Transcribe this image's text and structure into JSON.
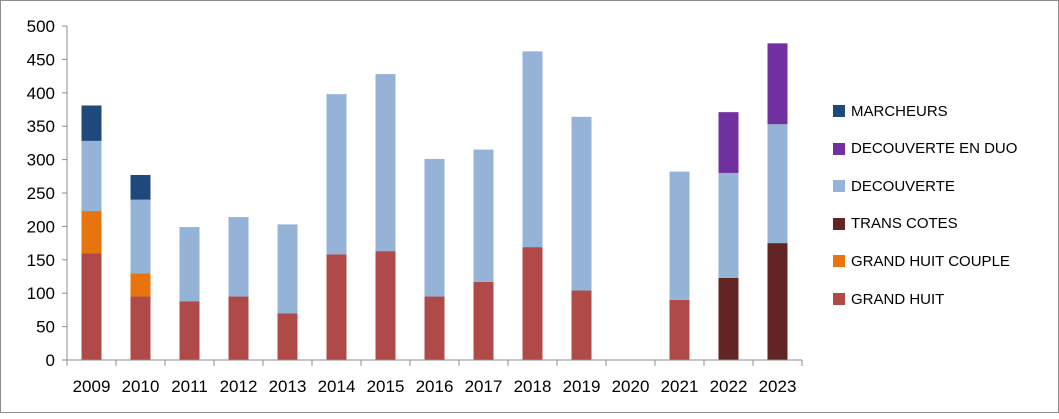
{
  "chart_data": {
    "type": "bar",
    "stacked": true,
    "categories": [
      "2009",
      "2010",
      "2011",
      "2012",
      "2013",
      "2014",
      "2015",
      "2016",
      "2017",
      "2018",
      "2019",
      "2020",
      "2021",
      "2022",
      "2023"
    ],
    "ylim": [
      0,
      500
    ],
    "yticks": [
      0,
      50,
      100,
      150,
      200,
      250,
      300,
      350,
      400,
      450,
      500
    ],
    "grid": false,
    "legend_position": "right",
    "series": [
      {
        "name": "GRAND HUIT",
        "color": "#b04a48",
        "values": [
          160,
          95,
          88,
          95,
          70,
          158,
          163,
          95,
          117,
          169,
          104,
          0,
          90,
          0,
          0
        ]
      },
      {
        "name": "GRAND HUIT COUPLE",
        "color": "#e8740f",
        "values": [
          63,
          35,
          0,
          0,
          0,
          0,
          0,
          0,
          0,
          0,
          0,
          0,
          0,
          0,
          0
        ]
      },
      {
        "name": "TRANS COTES",
        "color": "#622523",
        "values": [
          0,
          0,
          0,
          0,
          0,
          0,
          0,
          0,
          0,
          0,
          0,
          0,
          0,
          123,
          175
        ]
      },
      {
        "name": "DECOUVERTE",
        "color": "#95b3d7",
        "values": [
          105,
          110,
          111,
          119,
          133,
          240,
          265,
          206,
          198,
          293,
          260,
          0,
          192,
          157,
          178
        ]
      },
      {
        "name": "DECOUVERTE EN DUO",
        "color": "#7030a0",
        "values": [
          0,
          0,
          0,
          0,
          0,
          0,
          0,
          0,
          0,
          0,
          0,
          0,
          0,
          91,
          121
        ]
      },
      {
        "name": "MARCHEURS",
        "color": "#1f497d",
        "values": [
          53,
          37,
          0,
          0,
          0,
          0,
          0,
          0,
          0,
          0,
          0,
          0,
          0,
          0,
          0
        ]
      }
    ],
    "legend_order": [
      "MARCHEURS",
      "DECOUVERTE EN DUO",
      "DECOUVERTE",
      "TRANS COTES",
      "GRAND HUIT COUPLE",
      "GRAND HUIT"
    ]
  }
}
